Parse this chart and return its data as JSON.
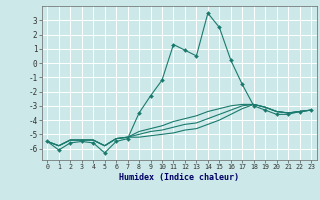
{
  "xlabel": "Humidex (Indice chaleur)",
  "bg_color": "#cce8e8",
  "grid_color": "#ffffff",
  "line_color": "#1a7a6e",
  "xlim": [
    -0.5,
    23.5
  ],
  "ylim": [
    -6.8,
    4.0
  ],
  "yticks": [
    3,
    2,
    1,
    0,
    -1,
    -2,
    -3,
    -4,
    -5,
    -6
  ],
  "xticks": [
    0,
    1,
    2,
    3,
    4,
    5,
    6,
    7,
    8,
    9,
    10,
    11,
    12,
    13,
    14,
    15,
    16,
    17,
    18,
    19,
    20,
    21,
    22,
    23
  ],
  "series": [
    [
      -5.5,
      -6.1,
      -5.6,
      -5.5,
      -5.6,
      -6.3,
      -5.5,
      -5.3,
      -3.5,
      -2.3,
      -1.2,
      1.3,
      0.9,
      0.5,
      3.5,
      2.5,
      0.2,
      -1.5,
      -3.0,
      -3.3,
      -3.6,
      -3.6,
      -3.4,
      -3.3
    ],
    [
      -5.5,
      -5.8,
      -5.4,
      -5.4,
      -5.4,
      -5.8,
      -5.3,
      -5.2,
      -4.8,
      -4.6,
      -4.4,
      -4.1,
      -3.9,
      -3.7,
      -3.4,
      -3.2,
      -3.0,
      -2.9,
      -2.9,
      -3.1,
      -3.4,
      -3.5,
      -3.4,
      -3.3
    ],
    [
      -5.5,
      -5.8,
      -5.4,
      -5.4,
      -5.4,
      -5.8,
      -5.3,
      -5.2,
      -5.0,
      -4.8,
      -4.7,
      -4.5,
      -4.3,
      -4.2,
      -3.9,
      -3.6,
      -3.3,
      -3.0,
      -2.9,
      -3.1,
      -3.4,
      -3.5,
      -3.4,
      -3.3
    ],
    [
      -5.5,
      -5.8,
      -5.4,
      -5.4,
      -5.4,
      -5.8,
      -5.3,
      -5.2,
      -5.2,
      -5.1,
      -5.0,
      -4.9,
      -4.7,
      -4.6,
      -4.3,
      -4.0,
      -3.6,
      -3.2,
      -2.9,
      -3.1,
      -3.4,
      -3.5,
      -3.4,
      -3.3
    ]
  ]
}
